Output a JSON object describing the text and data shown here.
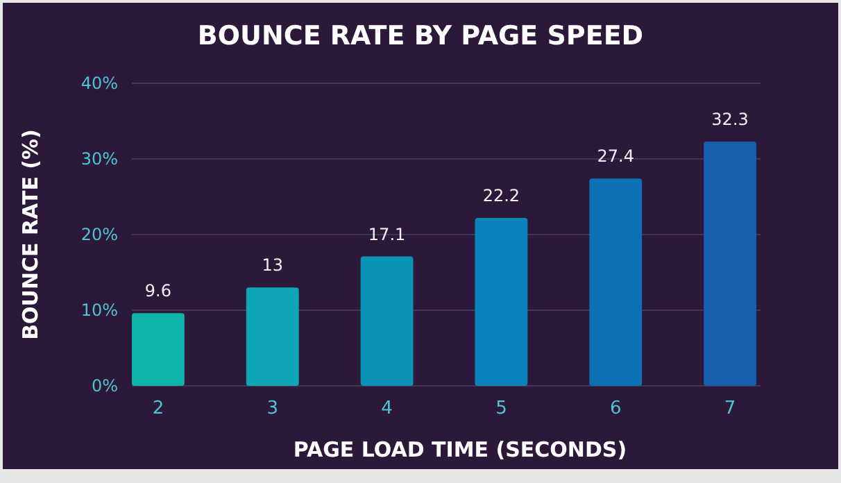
{
  "chart_data": {
    "type": "bar",
    "title": "BOUNCE RATE BY PAGE SPEED",
    "xlabel": "PAGE LOAD TIME (SECONDS)",
    "ylabel": "BOUNCE RATE (%)",
    "categories": [
      "2",
      "3",
      "4",
      "5",
      "6",
      "7"
    ],
    "values": [
      9.6,
      13,
      17.1,
      22.2,
      27.4,
      32.3
    ],
    "colors": [
      "#0fb5ad",
      "#0ea6b6",
      "#0b93b7",
      "#0a83bb",
      "#0c70b4",
      "#1760ac"
    ],
    "ylim": [
      0,
      40
    ],
    "yticks": [
      {
        "value": 0,
        "label": "0%"
      },
      {
        "value": 10,
        "label": "10%"
      },
      {
        "value": 20,
        "label": "20%"
      },
      {
        "value": 30,
        "label": "30%"
      },
      {
        "value": 40,
        "label": "40%"
      }
    ],
    "grid": "y",
    "data_labels": true
  }
}
